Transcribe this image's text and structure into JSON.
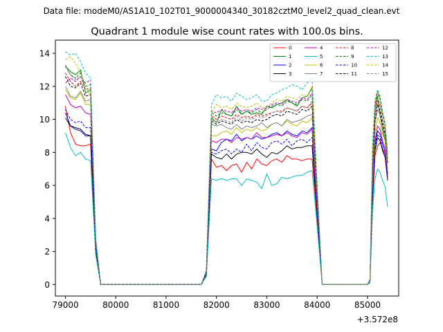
{
  "figure": {
    "suptitle": "Data file: modeM0/AS1A10_102T01_9000004340_30182cztM0_level2_quad_clean.evt"
  },
  "chart_data": {
    "type": "line",
    "title": "Quadrant 1 module wise count rates with 100.0s bins.",
    "xlabel": "",
    "ylabel": "",
    "x_offset_label": "+3.572e8",
    "xlim": [
      78800,
      85620
    ],
    "ylim": [
      -0.7,
      14.8
    ],
    "xticks": [
      79000,
      80000,
      81000,
      82000,
      83000,
      84000,
      85000
    ],
    "xtick_labels": [
      "79000",
      "80000",
      "81000",
      "82000",
      "83000",
      "84000",
      "85000"
    ],
    "yticks": [
      0,
      2,
      4,
      6,
      8,
      10,
      12,
      14
    ],
    "ytick_labels": [
      "0",
      "2",
      "4",
      "6",
      "8",
      "10",
      "12",
      "14"
    ],
    "grid": false,
    "legend_position": "top-right",
    "legend_columns": 4,
    "x": [
      79000,
      79100,
      79200,
      79300,
      79400,
      79500,
      79600,
      79700,
      81700,
      81800,
      81900,
      82000,
      82100,
      82200,
      82300,
      82400,
      82500,
      82600,
      82700,
      82800,
      82900,
      83000,
      83100,
      83200,
      83300,
      83400,
      83500,
      83600,
      83700,
      83800,
      83900,
      84000,
      84100,
      85000,
      85050,
      85100,
      85150,
      85200,
      85250,
      85300,
      85350,
      85400
    ],
    "series": [
      {
        "name": "0",
        "color": "#ff0000",
        "dash": "solid",
        "values": [
          10.8,
          9.2,
          8.5,
          8.4,
          8.4,
          8.5,
          2.0,
          0,
          0,
          0.6,
          7.6,
          7.1,
          7.2,
          6.9,
          7.2,
          7.3,
          6.8,
          7.4,
          7.0,
          7.6,
          7.3,
          7.2,
          7.5,
          7.6,
          7.4,
          7.8,
          7.6,
          7.6,
          7.5,
          7.6,
          7.6,
          4.0,
          0,
          0,
          0.2,
          5.0,
          7.8,
          8.4,
          8.6,
          8.2,
          7.9,
          6.5
        ]
      },
      {
        "name": "1",
        "color": "#008000",
        "dash": "solid",
        "values": [
          13.2,
          12.9,
          12.7,
          13.0,
          11.6,
          11.8,
          2.5,
          0,
          0,
          0.8,
          10.1,
          9.8,
          10.6,
          10.3,
          10.2,
          10.8,
          10.3,
          10.5,
          10.3,
          10.4,
          10.3,
          10.8,
          10.7,
          10.9,
          11.0,
          11.2,
          11.0,
          10.8,
          11.3,
          11.4,
          11.9,
          5.5,
          0,
          0,
          0.3,
          8.0,
          10.5,
          11.4,
          10.2,
          9.4,
          8.7,
          7.0
        ]
      },
      {
        "name": "2",
        "color": "#0000ff",
        "dash": "solid",
        "values": [
          10.4,
          9.6,
          9.4,
          9.3,
          9.0,
          9.0,
          2.2,
          0,
          0,
          0.7,
          8.2,
          8.1,
          8.6,
          8.8,
          8.7,
          9.1,
          8.7,
          8.9,
          8.8,
          9.0,
          8.8,
          8.9,
          9.1,
          9.2,
          9.0,
          9.3,
          9.1,
          9.0,
          9.3,
          9.2,
          9.5,
          4.5,
          0,
          0,
          0.2,
          5.5,
          8.5,
          9.3,
          9.1,
          8.5,
          8.0,
          6.7
        ]
      },
      {
        "name": "3",
        "color": "#000000",
        "dash": "solid",
        "values": [
          10.1,
          9.6,
          9.5,
          9.4,
          9.1,
          9.0,
          2.1,
          0,
          0,
          0.6,
          7.9,
          7.7,
          7.6,
          7.9,
          7.6,
          7.9,
          8.0,
          8.0,
          7.9,
          8.2,
          7.9,
          7.7,
          8.0,
          7.9,
          8.1,
          8.4,
          8.2,
          8.3,
          8.3,
          8.4,
          8.4,
          4.2,
          0,
          0,
          0.2,
          5.2,
          8.1,
          8.9,
          8.7,
          8.1,
          7.7,
          6.3
        ]
      },
      {
        "name": "4",
        "color": "#bf00bf",
        "dash": "solid",
        "values": [
          11.5,
          10.9,
          10.7,
          10.8,
          10.4,
          10.3,
          2.3,
          0,
          0,
          0.7,
          8.7,
          8.6,
          8.8,
          8.8,
          8.6,
          8.9,
          8.8,
          8.9,
          8.8,
          9.2,
          8.9,
          8.9,
          9.0,
          9.1,
          9.0,
          9.2,
          9.0,
          8.9,
          9.2,
          9.1,
          9.4,
          4.5,
          0,
          0,
          0.2,
          5.6,
          8.7,
          9.6,
          9.4,
          8.7,
          8.2,
          6.7
        ]
      },
      {
        "name": "5",
        "color": "#00bfbf",
        "dash": "solid",
        "values": [
          9.2,
          8.3,
          7.8,
          8.0,
          7.6,
          7.5,
          1.8,
          0,
          0,
          0.5,
          6.4,
          6.3,
          6.4,
          6.3,
          6.4,
          6.4,
          6.0,
          6.4,
          6.3,
          6.2,
          5.8,
          6.7,
          6.0,
          6.1,
          6.5,
          6.4,
          6.5,
          6.6,
          6.6,
          6.8,
          6.9,
          3.5,
          0,
          0,
          0.1,
          4.5,
          6.4,
          7.0,
          6.8,
          6.3,
          5.9,
          4.7
        ]
      },
      {
        "name": "6",
        "color": "#bfbf00",
        "dash": "solid",
        "values": [
          11.8,
          11.3,
          11.2,
          11.6,
          10.9,
          10.9,
          2.4,
          0,
          0,
          0.7,
          9.0,
          9.0,
          9.2,
          9.3,
          9.1,
          9.5,
          9.2,
          9.4,
          9.3,
          9.5,
          9.3,
          9.4,
          9.7,
          9.8,
          9.6,
          9.9,
          9.7,
          9.6,
          9.9,
          9.8,
          10.1,
          5.0,
          0,
          0,
          0.2,
          6.0,
          9.2,
          10.1,
          9.8,
          9.1,
          8.7,
          7.0
        ]
      },
      {
        "name": "7",
        "color": "#808080",
        "dash": "solid",
        "values": [
          12.0,
          11.4,
          11.3,
          11.7,
          11.1,
          11.2,
          2.5,
          0,
          0,
          0.8,
          9.7,
          9.6,
          9.7,
          9.5,
          9.4,
          9.7,
          9.4,
          9.6,
          9.5,
          9.6,
          9.8,
          9.5,
          9.7,
          9.8,
          9.6,
          10.0,
          9.8,
          9.9,
          10.0,
          10.2,
          10.3,
          5.2,
          0,
          0,
          0.2,
          6.3,
          9.8,
          10.6,
          10.3,
          9.5,
          9.0,
          7.3
        ]
      },
      {
        "name": "8",
        "color": "#ff0000",
        "dash": "dashed",
        "values": [
          12.8,
          12.3,
          12.0,
          12.3,
          11.8,
          11.9,
          2.6,
          0,
          0,
          0.8,
          10.2,
          10.0,
          10.2,
          10.1,
          10.0,
          10.3,
          10.1,
          10.2,
          10.1,
          10.3,
          10.2,
          10.3,
          10.4,
          10.5,
          10.5,
          10.7,
          10.6,
          10.5,
          10.8,
          10.7,
          11.0,
          5.5,
          0,
          0,
          0.3,
          7.0,
          10.3,
          11.1,
          10.8,
          9.9,
          9.3,
          7.6
        ]
      },
      {
        "name": "9",
        "color": "#008000",
        "dash": "dashed",
        "values": [
          13.3,
          12.7,
          12.5,
          12.8,
          12.0,
          12.1,
          2.7,
          0,
          0,
          0.8,
          10.4,
          10.2,
          10.4,
          10.3,
          10.2,
          10.6,
          10.3,
          10.5,
          10.4,
          10.6,
          10.4,
          10.6,
          10.8,
          10.9,
          10.8,
          11.1,
          11.0,
          10.9,
          11.2,
          11.1,
          11.5,
          5.7,
          0,
          0,
          0.3,
          7.5,
          10.8,
          11.6,
          11.2,
          10.3,
          9.6,
          7.8
        ]
      },
      {
        "name": "10",
        "color": "#0000ff",
        "dash": "dashed",
        "values": [
          10.6,
          10.0,
          9.8,
          9.9,
          9.5,
          9.5,
          2.2,
          0,
          0,
          0.7,
          8.0,
          7.9,
          8.1,
          8.2,
          7.9,
          8.2,
          8.0,
          8.5,
          8.1,
          8.6,
          8.3,
          8.2,
          8.6,
          8.7,
          8.5,
          8.8,
          8.4,
          8.7,
          8.8,
          8.6,
          8.9,
          4.4,
          0,
          0,
          0.2,
          5.4,
          8.3,
          9.1,
          8.9,
          8.2,
          7.7,
          6.4
        ]
      },
      {
        "name": "11",
        "color": "#000000",
        "dash": "dashed",
        "values": [
          12.6,
          12.0,
          11.9,
          12.2,
          11.4,
          11.5,
          2.6,
          0,
          0,
          0.8,
          9.9,
          9.7,
          9.9,
          9.8,
          9.7,
          10.0,
          9.8,
          9.9,
          9.8,
          10.0,
          9.9,
          10.0,
          10.2,
          10.3,
          10.2,
          10.5,
          10.4,
          10.3,
          10.6,
          10.5,
          10.8,
          5.4,
          0,
          0,
          0.3,
          6.8,
          10.0,
          10.9,
          10.5,
          9.7,
          9.1,
          7.4
        ]
      },
      {
        "name": "12",
        "color": "#bf00bf",
        "dash": "dashed",
        "values": [
          12.2,
          12.5,
          12.3,
          12.6,
          12.2,
          12.4,
          2.7,
          0,
          0,
          0.8,
          10.5,
          10.4,
          10.6,
          10.5,
          10.4,
          10.7,
          10.5,
          10.6,
          10.5,
          10.7,
          10.6,
          10.7,
          10.9,
          11.0,
          10.9,
          11.2,
          11.1,
          11.0,
          11.3,
          11.2,
          11.6,
          5.8,
          0,
          0,
          0.3,
          7.6,
          10.9,
          11.7,
          11.3,
          10.4,
          9.7,
          7.9
        ]
      },
      {
        "name": "13",
        "color": "#00bfbf",
        "dash": "dashed",
        "values": [
          14.1,
          13.9,
          14.0,
          13.5,
          12.8,
          12.5,
          2.9,
          0,
          0,
          0.9,
          10.9,
          11.5,
          11.3,
          11.4,
          11.1,
          11.6,
          11.4,
          11.2,
          11.3,
          11.5,
          11.1,
          11.1,
          11.5,
          11.6,
          11.8,
          11.9,
          12.1,
          12.0,
          11.8,
          12.2,
          12.5,
          6.2,
          0,
          0,
          0.3,
          8.5,
          11.2,
          11.8,
          11.4,
          10.5,
          9.8,
          8.0
        ]
      },
      {
        "name": "14",
        "color": "#bfbf00",
        "dash": "dashed",
        "values": [
          13.6,
          13.8,
          13.4,
          12.8,
          12.0,
          11.4,
          2.6,
          0,
          0,
          0.8,
          10.4,
          10.9,
          10.7,
          10.8,
          10.6,
          11.0,
          10.8,
          10.7,
          10.8,
          11.0,
          10.7,
          10.8,
          11.0,
          11.2,
          11.1,
          11.4,
          11.3,
          11.2,
          11.5,
          11.4,
          12.0,
          5.9,
          0,
          0,
          0.3,
          7.9,
          11.0,
          11.7,
          11.3,
          10.4,
          9.7,
          7.9
        ]
      },
      {
        "name": "15",
        "color": "#808080",
        "dash": "dashed",
        "values": [
          13.2,
          12.7,
          12.4,
          12.6,
          11.8,
          11.9,
          2.6,
          0,
          0,
          0.8,
          10.0,
          9.8,
          10.0,
          9.9,
          9.8,
          10.2,
          9.9,
          10.1,
          10.0,
          10.2,
          10.1,
          10.2,
          10.4,
          10.5,
          10.4,
          10.7,
          10.6,
          10.5,
          10.8,
          10.7,
          11.1,
          5.5,
          0,
          0,
          0.3,
          7.2,
          10.5,
          11.3,
          10.9,
          10.0,
          9.4,
          7.6
        ]
      }
    ]
  }
}
